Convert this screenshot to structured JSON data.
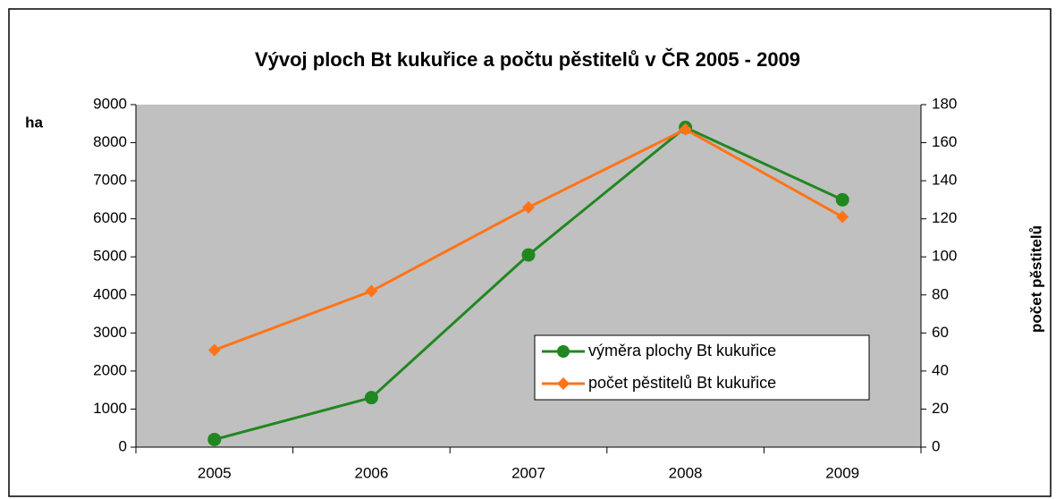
{
  "chart_data": {
    "type": "line",
    "title": "Vývoj ploch Bt kukuřice a počtu pěstitelů v ČR 2005 - 2009",
    "y_label": "ha",
    "y2_label": "počet pěstitelů",
    "categories": [
      "2005",
      "2006",
      "2007",
      "2008",
      "2009"
    ],
    "series": [
      {
        "name": "výměra plochy Bt kukuřice",
        "color": "#218721",
        "marker": "circle",
        "values": [
          200,
          1300,
          5050,
          8400,
          6500
        ]
      },
      {
        "name": "počet pěstitelů Bt kukuřice",
        "color": "#ff7418",
        "marker": "diamond",
        "axis": "y2",
        "values": [
          51,
          82,
          126,
          167,
          121
        ]
      }
    ],
    "ylim": [
      0,
      9000
    ],
    "yticks": [
      0,
      1000,
      2000,
      3000,
      4000,
      5000,
      6000,
      7000,
      8000,
      9000
    ],
    "y2lim": [
      0,
      180
    ],
    "y2ticks": [
      0,
      20,
      40,
      60,
      80,
      100,
      120,
      140,
      160,
      180
    ],
    "plot_background": "#c0c0c0",
    "grid": false
  }
}
